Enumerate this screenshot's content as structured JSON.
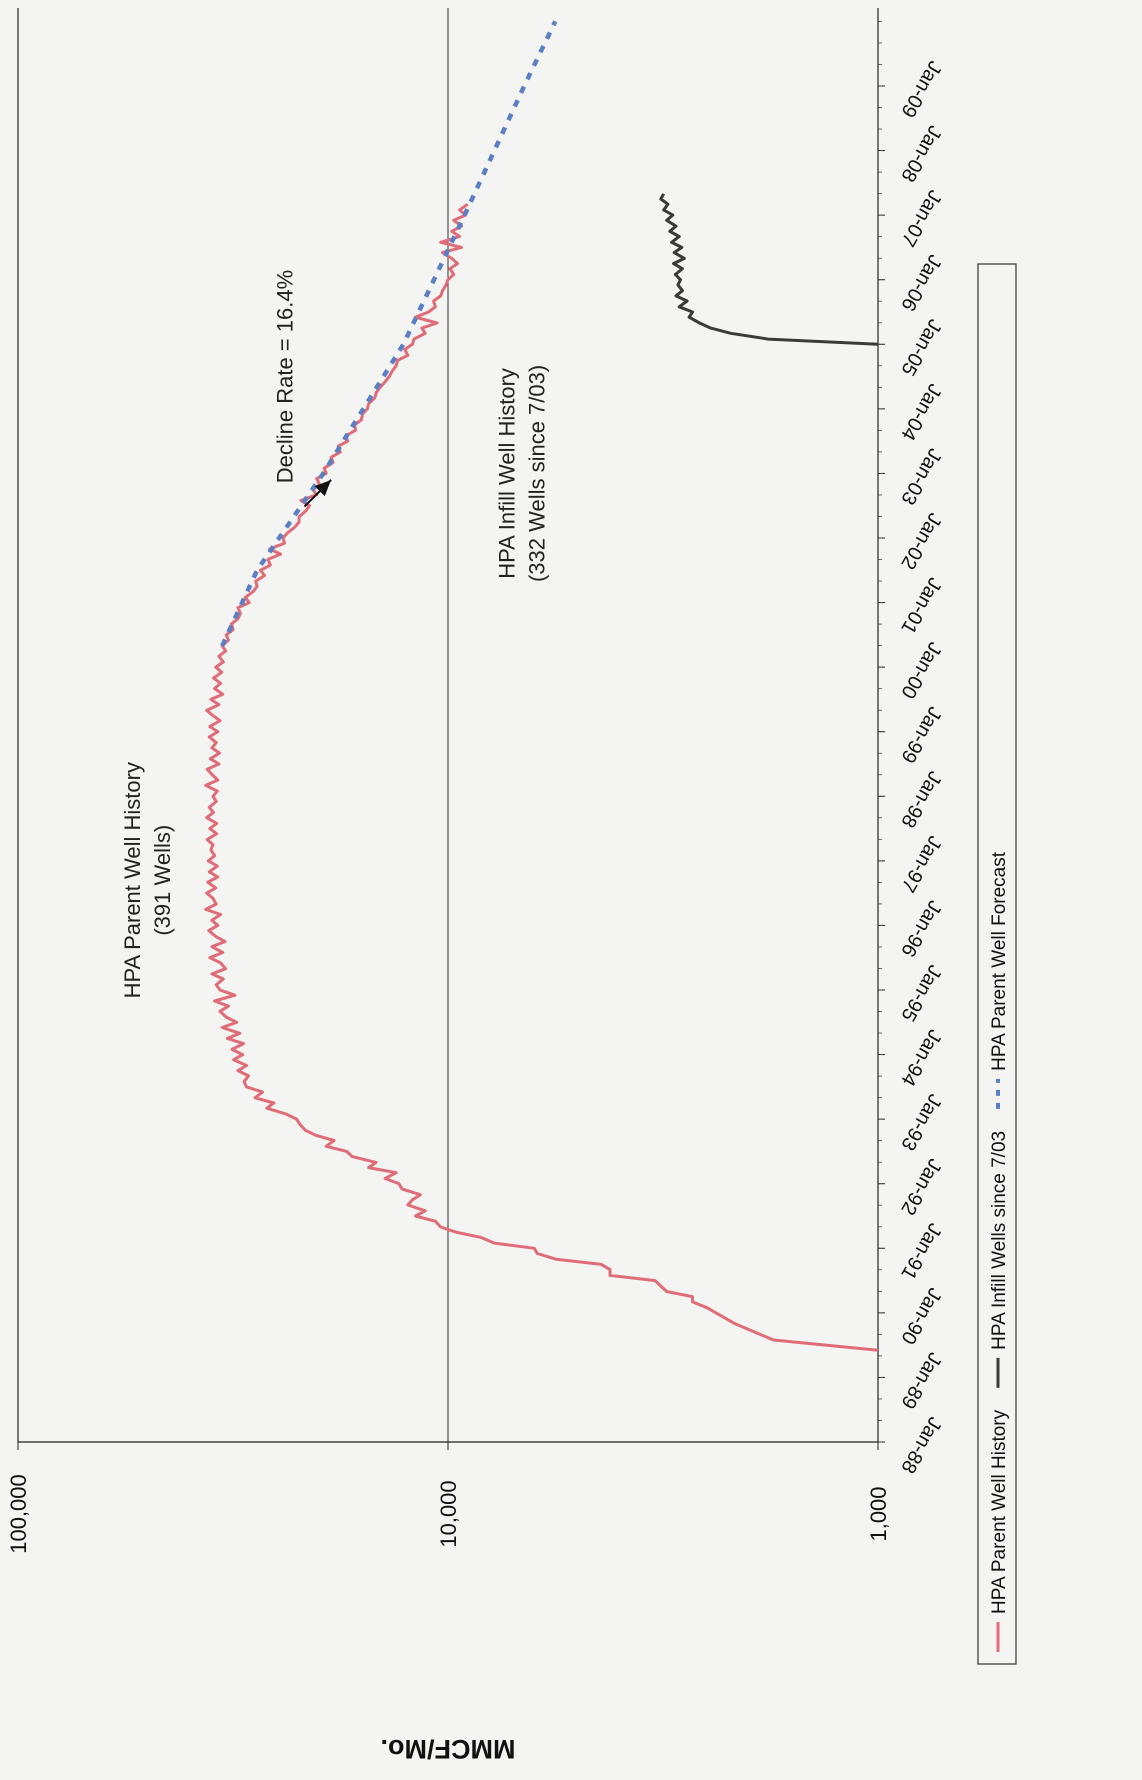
{
  "chart_data": {
    "type": "line",
    "title": "",
    "ylabel": "MMCF/Mo.",
    "xlabel": "",
    "y_scale": "log",
    "ylim": [
      1000,
      100000
    ],
    "y_ticks": [
      {
        "value": 100000,
        "label": "100,000"
      },
      {
        "value": 10000,
        "label": "10,000"
      },
      {
        "value": 1000,
        "label": "1,000"
      }
    ],
    "x_ticks": [
      "Jan-88",
      "Jan-89",
      "Jan-90",
      "Jan-91",
      "Jan-92",
      "Jan-93",
      "Jan-94",
      "Jan-95",
      "Jan-96",
      "Jan-97",
      "Jan-98",
      "Jan-99",
      "Jan-00",
      "Jan-01",
      "Jan-02",
      "Jan-03",
      "Jan-04",
      "Jan-05",
      "Jan-06",
      "Jan-07",
      "Jan-08",
      "Jan-09"
    ],
    "xlim": [
      1988.0,
      2010.0
    ],
    "grid": {
      "horizontal_major": true,
      "vertical": false
    },
    "legend": {
      "placement": "right"
    },
    "series": [
      {
        "name": "HPA Parent Well History",
        "color": "#e06c78",
        "style": "solid",
        "points": [
          [
            1989.42,
            1000
          ],
          [
            1989.58,
            1750
          ],
          [
            1989.83,
            2150
          ],
          [
            1990.08,
            2500
          ],
          [
            1990.17,
            2700
          ],
          [
            1990.25,
            2700
          ],
          [
            1990.33,
            3100
          ],
          [
            1990.5,
            3300
          ],
          [
            1990.58,
            4200
          ],
          [
            1990.67,
            4200
          ],
          [
            1990.75,
            4400
          ],
          [
            1990.83,
            5600
          ],
          [
            1990.92,
            6200
          ],
          [
            1991.0,
            6300
          ],
          [
            1991.08,
            7800
          ],
          [
            1991.17,
            8400
          ],
          [
            1991.25,
            9600
          ],
          [
            1991.33,
            10400
          ],
          [
            1991.42,
            10700
          ],
          [
            1991.5,
            11900
          ],
          [
            1991.58,
            11300
          ],
          [
            1991.67,
            12400
          ],
          [
            1991.75,
            12100
          ],
          [
            1991.83,
            11600
          ],
          [
            1991.92,
            12800
          ],
          [
            1992.0,
            13000
          ],
          [
            1992.08,
            14000
          ],
          [
            1992.17,
            13200
          ],
          [
            1992.25,
            15300
          ],
          [
            1992.33,
            14700
          ],
          [
            1992.42,
            16700
          ],
          [
            1992.5,
            17200
          ],
          [
            1992.58,
            19200
          ],
          [
            1992.67,
            18400
          ],
          [
            1992.75,
            20300
          ],
          [
            1992.83,
            21500
          ],
          [
            1992.92,
            22100
          ],
          [
            1993.0,
            22500
          ],
          [
            1993.08,
            23800
          ],
          [
            1993.17,
            26400
          ],
          [
            1993.25,
            25400
          ],
          [
            1993.33,
            28100
          ],
          [
            1993.42,
            27000
          ],
          [
            1993.5,
            29400
          ],
          [
            1993.58,
            29800
          ],
          [
            1993.67,
            29100
          ],
          [
            1993.75,
            30800
          ],
          [
            1993.83,
            29400
          ],
          [
            1993.92,
            31500
          ],
          [
            1994.0,
            30000
          ],
          [
            1994.08,
            31800
          ],
          [
            1994.17,
            29900
          ],
          [
            1994.25,
            32600
          ],
          [
            1994.33,
            30500
          ],
          [
            1994.42,
            33500
          ],
          [
            1994.5,
            31000
          ],
          [
            1994.58,
            32800
          ],
          [
            1994.67,
            33900
          ],
          [
            1994.75,
            32400
          ],
          [
            1994.83,
            34900
          ],
          [
            1994.92,
            31300
          ],
          [
            1995.0,
            33900
          ],
          [
            1995.08,
            34600
          ],
          [
            1995.17,
            33300
          ],
          [
            1995.25,
            35400
          ],
          [
            1995.33,
            32900
          ],
          [
            1995.42,
            33800
          ],
          [
            1995.5,
            35800
          ],
          [
            1995.58,
            33400
          ],
          [
            1995.67,
            35400
          ],
          [
            1995.75,
            33000
          ],
          [
            1995.83,
            34700
          ],
          [
            1995.92,
            36000
          ],
          [
            1996.0,
            34300
          ],
          [
            1996.08,
            35400
          ],
          [
            1996.17,
            33800
          ],
          [
            1996.25,
            36600
          ],
          [
            1996.33,
            34600
          ],
          [
            1996.42,
            35200
          ],
          [
            1996.5,
            36400
          ],
          [
            1996.58,
            34700
          ],
          [
            1996.67,
            36200
          ],
          [
            1996.75,
            34300
          ],
          [
            1996.83,
            35900
          ],
          [
            1996.92,
            34400
          ],
          [
            1997.0,
            36100
          ],
          [
            1997.08,
            34900
          ],
          [
            1997.17,
            35600
          ],
          [
            1997.25,
            35200
          ],
          [
            1997.33,
            36300
          ],
          [
            1997.42,
            34500
          ],
          [
            1997.5,
            35800
          ],
          [
            1997.58,
            34500
          ],
          [
            1997.67,
            36400
          ],
          [
            1997.75,
            35100
          ],
          [
            1997.83,
            35900
          ],
          [
            1997.92,
            34600
          ],
          [
            1998.0,
            35200
          ],
          [
            1998.08,
            34400
          ],
          [
            1998.17,
            36600
          ],
          [
            1998.25,
            34300
          ],
          [
            1998.33,
            35300
          ],
          [
            1998.42,
            36300
          ],
          [
            1998.5,
            34100
          ],
          [
            1998.58,
            35700
          ],
          [
            1998.67,
            34000
          ],
          [
            1998.75,
            35400
          ],
          [
            1998.83,
            34600
          ],
          [
            1998.92,
            35900
          ],
          [
            1999.0,
            34300
          ],
          [
            1999.08,
            35800
          ],
          [
            1999.17,
            33900
          ],
          [
            1999.25,
            35200
          ],
          [
            1999.33,
            36400
          ],
          [
            1999.42,
            34100
          ],
          [
            1999.5,
            35600
          ],
          [
            1999.58,
            33400
          ],
          [
            1999.67,
            34900
          ],
          [
            1999.75,
            33800
          ],
          [
            1999.83,
            35100
          ],
          [
            1999.92,
            33600
          ],
          [
            2000.0,
            34700
          ],
          [
            2000.08,
            33300
          ],
          [
            2000.17,
            34100
          ],
          [
            2000.25,
            32900
          ],
          [
            2000.33,
            33500
          ],
          [
            2000.42,
            32400
          ],
          [
            2000.5,
            32800
          ],
          [
            2000.58,
            31600
          ],
          [
            2000.67,
            31900
          ],
          [
            2000.75,
            30800
          ],
          [
            2000.83,
            30400
          ],
          [
            2000.92,
            30800
          ],
          [
            2001.0,
            29000
          ],
          [
            2001.08,
            29600
          ],
          [
            2001.17,
            28400
          ],
          [
            2001.25,
            27800
          ],
          [
            2001.33,
            28000
          ],
          [
            2001.42,
            26700
          ],
          [
            2001.5,
            27300
          ],
          [
            2001.58,
            25900
          ],
          [
            2001.67,
            26200
          ],
          [
            2001.75,
            24500
          ],
          [
            2001.83,
            26000
          ],
          [
            2001.92,
            24000
          ],
          [
            2002.0,
            24200
          ],
          [
            2002.08,
            23600
          ],
          [
            2002.17,
            22700
          ],
          [
            2002.25,
            22200
          ],
          [
            2002.33,
            22200
          ],
          [
            2002.42,
            21400
          ],
          [
            2002.5,
            21000
          ],
          [
            2002.58,
            22000
          ],
          [
            2002.67,
            20200
          ],
          [
            2002.75,
            20600
          ],
          [
            2002.83,
            19900
          ],
          [
            2002.92,
            20200
          ],
          [
            2003.0,
            19200
          ],
          [
            2003.08,
            19400
          ],
          [
            2003.17,
            18500
          ],
          [
            2003.25,
            18700
          ],
          [
            2003.33,
            17800
          ],
          [
            2003.42,
            18000
          ],
          [
            2003.5,
            17100
          ],
          [
            2003.58,
            17300
          ],
          [
            2003.67,
            16400
          ],
          [
            2003.75,
            16500
          ],
          [
            2003.83,
            15900
          ],
          [
            2003.92,
            15800
          ],
          [
            2004.0,
            15400
          ],
          [
            2004.08,
            15300
          ],
          [
            2004.17,
            14800
          ],
          [
            2004.25,
            14700
          ],
          [
            2004.33,
            14400
          ],
          [
            2004.42,
            14000
          ],
          [
            2004.5,
            13700
          ],
          [
            2004.58,
            13500
          ],
          [
            2004.67,
            13200
          ],
          [
            2004.75,
            13100
          ],
          [
            2004.83,
            12400
          ],
          [
            2004.92,
            12600
          ],
          [
            2005.0,
            12100
          ],
          [
            2005.08,
            12000
          ],
          [
            2005.17,
            11300
          ],
          [
            2005.25,
            11500
          ],
          [
            2005.33,
            10600
          ],
          [
            2005.42,
            11900
          ],
          [
            2005.5,
            11100
          ],
          [
            2005.58,
            10700
          ],
          [
            2005.67,
            10800
          ],
          [
            2005.75,
            10400
          ],
          [
            2005.83,
            10300
          ],
          [
            2005.92,
            10100
          ],
          [
            2006.0,
            10000
          ],
          [
            2006.08,
            9700
          ],
          [
            2006.17,
            9900
          ],
          [
            2006.25,
            9500
          ],
          [
            2006.33,
            9800
          ],
          [
            2006.42,
            10300
          ],
          [
            2006.5,
            9300
          ],
          [
            2006.58,
            10400
          ],
          [
            2006.67,
            9400
          ],
          [
            2006.75,
            9800
          ],
          [
            2006.83,
            9300
          ],
          [
            2006.92,
            9700
          ],
          [
            2007.0,
            9100
          ],
          [
            2007.08,
            9400
          ],
          [
            2007.17,
            9000
          ]
        ]
      },
      {
        "name": "HPA Infill Wells since 7/03",
        "color": "#3a3a3a",
        "style": "solid",
        "points": [
          [
            2005.0,
            1000
          ],
          [
            2005.08,
            1800
          ],
          [
            2005.17,
            2200
          ],
          [
            2005.25,
            2450
          ],
          [
            2005.33,
            2600
          ],
          [
            2005.42,
            2750
          ],
          [
            2005.5,
            2700
          ],
          [
            2005.58,
            2900
          ],
          [
            2005.67,
            2780
          ],
          [
            2005.75,
            2950
          ],
          [
            2005.83,
            2850
          ],
          [
            2005.92,
            2920
          ],
          [
            2006.0,
            2880
          ],
          [
            2006.08,
            2960
          ],
          [
            2006.17,
            2850
          ],
          [
            2006.25,
            2990
          ],
          [
            2006.33,
            2820
          ],
          [
            2006.42,
            2980
          ],
          [
            2006.5,
            2860
          ],
          [
            2006.58,
            3020
          ],
          [
            2006.67,
            2900
          ],
          [
            2006.75,
            3050
          ],
          [
            2006.83,
            2950
          ],
          [
            2006.92,
            3100
          ],
          [
            2007.0,
            3000
          ],
          [
            2007.08,
            3150
          ],
          [
            2007.17,
            3080
          ],
          [
            2007.25,
            3200
          ],
          [
            2007.33,
            3150
          ]
        ]
      },
      {
        "name": "HPA Parent Well Forecast",
        "color": "#5b7fc4",
        "style": "dashed",
        "points": [
          [
            2000.33,
            33500
          ],
          [
            2001.5,
            27800
          ],
          [
            2003.0,
            19500
          ],
          [
            2005.0,
            12700
          ],
          [
            2007.0,
            9150
          ],
          [
            2009.0,
            6650
          ],
          [
            2010.0,
            5630
          ]
        ]
      }
    ],
    "annotations": [
      {
        "text": "HPA Parent Well History",
        "subtext": "(391 Wells)",
        "x": 1996.7,
        "y": 52000
      },
      {
        "text": "HPA Infill Well History",
        "subtext": "(332 Wells since 7/03)",
        "x": 2003.0,
        "y": 7000
      },
      {
        "text": "Decline Rate = 16.4%",
        "x": 2004.5,
        "y": 23000,
        "arrow_to": [
          2002.9,
          18700
        ]
      }
    ]
  }
}
